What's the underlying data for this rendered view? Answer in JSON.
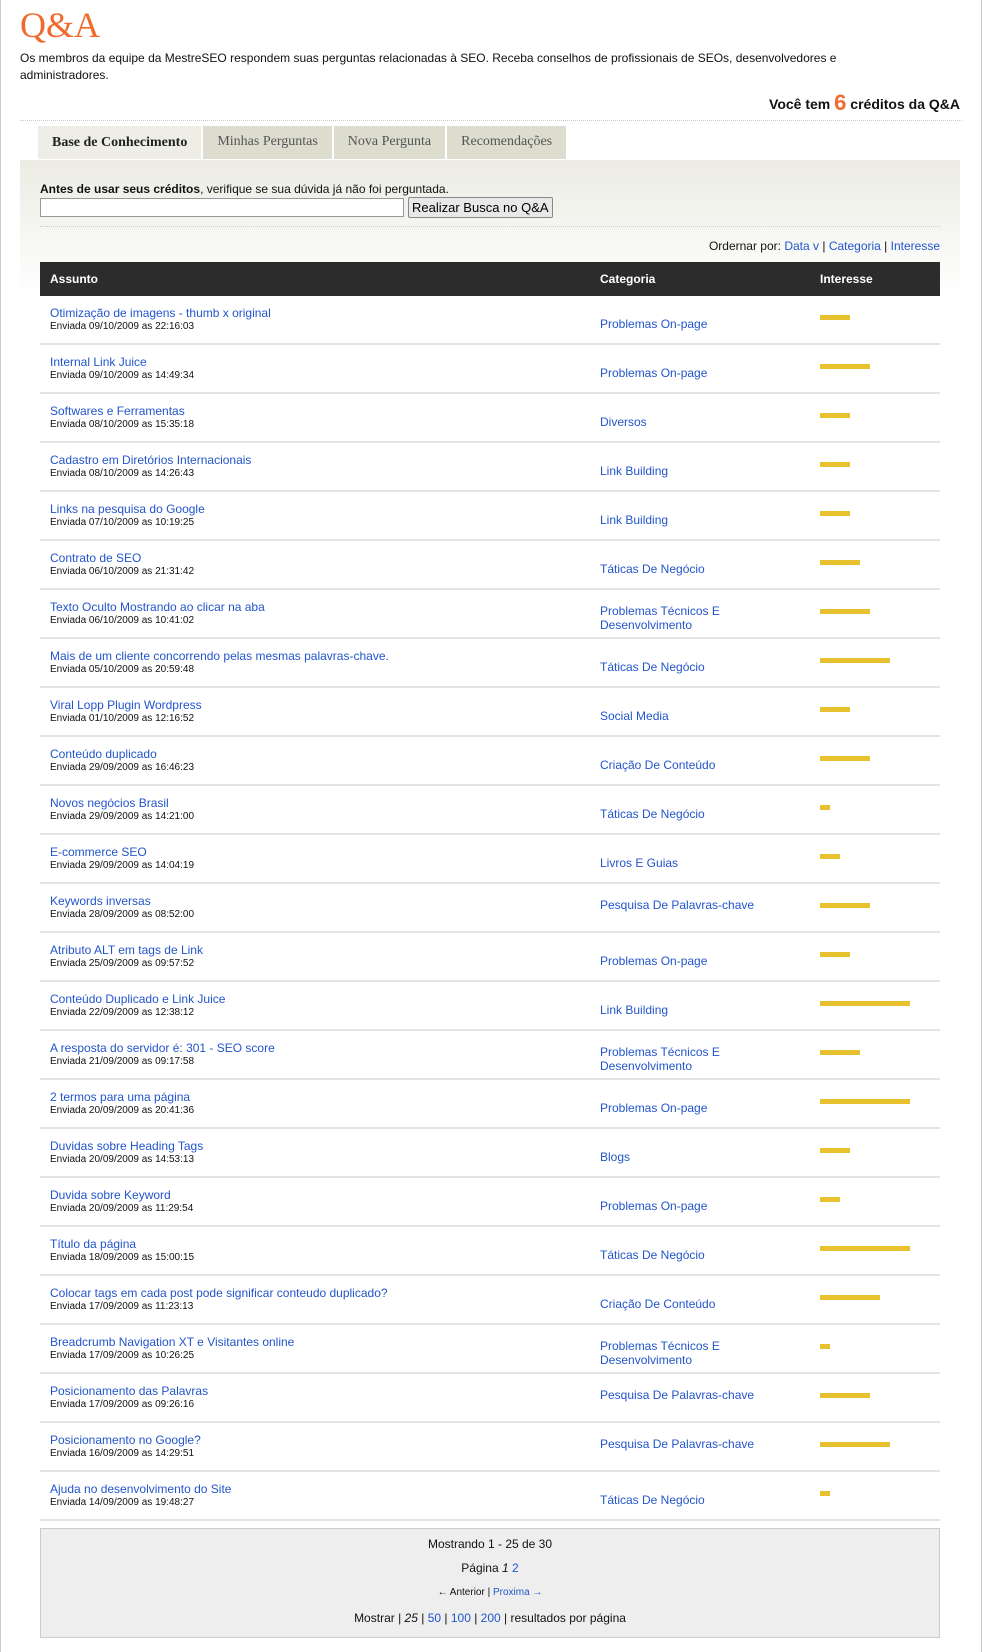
{
  "header": {
    "title": "Q&A",
    "intro": "Os membros da equipe da MestreSEO respondem suas perguntas relacionadas à SEO. Receba conselhos de profissionais de SEOs, desenvolvedores e administradores.",
    "credits_prefix": "Você tem",
    "credits_count": "6",
    "credits_suffix": "créditos da Q&A"
  },
  "tabs": [
    {
      "label": "Base de Conhecimento",
      "active": true
    },
    {
      "label": "Minhas Perguntas"
    },
    {
      "label": "Nova Pergunta"
    },
    {
      "label": "Recomendações"
    }
  ],
  "search": {
    "label_bold": "Antes de usar seus créditos",
    "label_rest": ", verifique se sua dúvida já não foi perguntada.",
    "value": "",
    "button": "Realizar Busca no Q&A"
  },
  "order": {
    "label": "Ordernar por:",
    "options": [
      "Data v",
      "Categoria",
      "Interesse"
    ]
  },
  "table": {
    "columns": [
      "Assunto",
      "Categoria",
      "Interesse"
    ],
    "interest_color": "#e8c22e",
    "rows": [
      {
        "subject": "Otimização de imagens - thumb x original",
        "date": "Enviada 09/10/2009 as 22:16:03",
        "category": "Problemas On-page",
        "interest": 3
      },
      {
        "subject": "Internal Link Juice",
        "date": "Enviada 09/10/2009 as 14:49:34",
        "category": "Problemas On-page",
        "interest": 5
      },
      {
        "subject": "Softwares e Ferramentas",
        "date": "Enviada 08/10/2009 as 15:35:18",
        "category": "Diversos",
        "interest": 3
      },
      {
        "subject": "Cadastro em Diretórios Internacionais",
        "date": "Enviada 08/10/2009 as 14:26:43",
        "category": "Link Building",
        "interest": 3
      },
      {
        "subject": "Links na pesquisa do Google",
        "date": "Enviada 07/10/2009 as 10:19:25",
        "category": "Link Building",
        "interest": 3
      },
      {
        "subject": "Contrato de SEO",
        "date": "Enviada 06/10/2009 as 21:31:42",
        "category": "Táticas De Negócio",
        "interest": 4
      },
      {
        "subject": "Texto Oculto Mostrando ao clicar na aba",
        "date": "Enviada 06/10/2009 as 10:41:02",
        "category": "Problemas Técnicos E Desenvolvimento",
        "interest": 5
      },
      {
        "subject": "Mais de um cliente concorrendo pelas mesmas palavras-chave.",
        "date": "Enviada 05/10/2009 as 20:59:48",
        "category": "Táticas De Negócio",
        "interest": 7
      },
      {
        "subject": "Viral Lopp Plugin Wordpress",
        "date": "Enviada 01/10/2009 as 12:16:52",
        "category": "Social Media",
        "interest": 3
      },
      {
        "subject": "Conteúdo duplicado",
        "date": "Enviada 29/09/2009 as 16:46:23",
        "category": "Criação De Conteúdo",
        "interest": 5
      },
      {
        "subject": "Novos negócios Brasil",
        "date": "Enviada 29/09/2009 as 14:21:00",
        "category": "Táticas De Negócio",
        "interest": 1
      },
      {
        "subject": "E-commerce SEO",
        "date": "Enviada 29/09/2009 as 14:04:19",
        "category": "Livros E Guias",
        "interest": 2
      },
      {
        "subject": "Keywords inversas",
        "date": "Enviada 28/09/2009 as 08:52:00",
        "category": "Pesquisa De Palavras-chave",
        "interest": 5
      },
      {
        "subject": "Atributo ALT em tags de Link",
        "date": "Enviada 25/09/2009 as 09:57:52",
        "category": "Problemas On-page",
        "interest": 3
      },
      {
        "subject": "Conteúdo Duplicado e Link Juice",
        "date": "Enviada 22/09/2009 as 12:38:12",
        "category": "Link Building",
        "interest": 9
      },
      {
        "subject": "A resposta do servidor é: 301 - SEO score",
        "date": "Enviada 21/09/2009 as 09:17:58",
        "category": "Problemas Técnicos E Desenvolvimento",
        "interest": 4
      },
      {
        "subject": "2 termos para uma página",
        "date": "Enviada 20/09/2009 as 20:41:36",
        "category": "Problemas On-page",
        "interest": 9
      },
      {
        "subject": "Duvidas sobre Heading Tags",
        "date": "Enviada 20/09/2009 as 14:53:13",
        "category": "Blogs",
        "interest": 3
      },
      {
        "subject": "Duvida sobre Keyword",
        "date": "Enviada 20/09/2009 as 11:29:54",
        "category": "Problemas On-page",
        "interest": 2
      },
      {
        "subject": "Título da página",
        "date": "Enviada 18/09/2009 as 15:00:15",
        "category": "Táticas De Negócio",
        "interest": 9
      },
      {
        "subject": "Colocar tags em cada post pode significar conteudo duplicado?",
        "date": "Enviada 17/09/2009 as 11:23:13",
        "category": "Criação De Conteúdo",
        "interest": 6
      },
      {
        "subject": "Breadcrumb Navigation XT e Visitantes online",
        "date": "Enviada 17/09/2009 as 10:26:25",
        "category": "Problemas Técnicos E Desenvolvimento",
        "interest": 1
      },
      {
        "subject": "Posicionamento das Palavras",
        "date": "Enviada 17/09/2009 as 09:26:16",
        "category": "Pesquisa De Palavras-chave",
        "interest": 5
      },
      {
        "subject": "Posicionamento no Google?",
        "date": "Enviada 16/09/2009 as 14:29:51",
        "category": "Pesquisa De Palavras-chave",
        "interest": 7
      },
      {
        "subject": "Ajuda no desenvolvimento do Site",
        "date": "Enviada 14/09/2009 as 19:48:27",
        "category": "Táticas De Negócio",
        "interest": 1
      }
    ]
  },
  "pager": {
    "showing": "Mostrando 1 - 25 de 30",
    "page_label": "Página",
    "current_page": "1",
    "other_page": "2",
    "prev": "← Anterior",
    "next": "Proxima →",
    "show_label": "Mostrar |",
    "current_size": "25",
    "sizes": [
      "50",
      "100",
      "200"
    ],
    "suffix": "| resultados por página"
  }
}
